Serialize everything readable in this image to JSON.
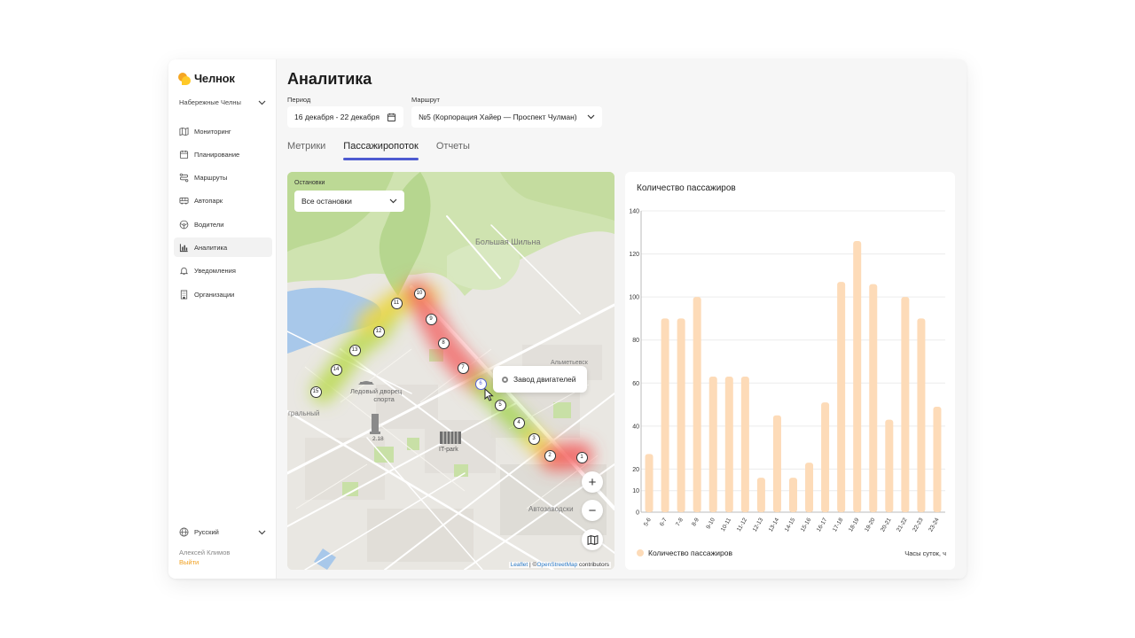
{
  "brand": {
    "name": "Челнок"
  },
  "sidebar": {
    "city": "Набережные Челны",
    "items": [
      {
        "label": "Мониторинг",
        "icon": "map-icon"
      },
      {
        "label": "Планирование",
        "icon": "calendar-icon"
      },
      {
        "label": "Маршруты",
        "icon": "route-icon"
      },
      {
        "label": "Автопарк",
        "icon": "bus-icon"
      },
      {
        "label": "Водители",
        "icon": "steering-wheel-icon"
      },
      {
        "label": "Аналитика",
        "icon": "chart-icon",
        "active": true
      },
      {
        "label": "Уведомления",
        "icon": "bell-icon"
      },
      {
        "label": "Организации",
        "icon": "building-icon"
      }
    ],
    "language": "Русский",
    "user_name": "Алексей Климов",
    "logout": "Выйти"
  },
  "page": {
    "title": "Аналитика",
    "period_label": "Период",
    "period_value": "16 декабря - 22 декабря",
    "route_label": "Маршрут",
    "route_value": "№5 (Корпорация Хайер — Проспект Чулман)",
    "tabs": [
      "Метрики",
      "Пассажиропоток",
      "Отчеты"
    ],
    "active_tab": "Пассажиропоток"
  },
  "map": {
    "stops_label": "Остановки",
    "stops_value": "Все остановки",
    "stops": [
      "1",
      "2",
      "3",
      "4",
      "5",
      "6",
      "7",
      "8",
      "9",
      "10",
      "11",
      "12",
      "13",
      "14",
      "15"
    ],
    "selected_stop": "6",
    "tooltip": "Завод двигателей",
    "labels": {
      "shilna": "Большая Шильна",
      "ice_palace_1": "Ледовый дворец",
      "ice_palace_2": "спорта",
      "tower": "2.18",
      "itpark": "IT-park",
      "almetyevsk": "Альметьевск",
      "avtozavod": "Автозаводски",
      "central": "гральный"
    },
    "attribution_leaflet": "Leaflet",
    "attribution_sep": "| ©",
    "attribution_osm": "OpenStreetMap",
    "attribution_tail": "contributors",
    "zoom_in": "+",
    "zoom_out": "−"
  },
  "chart_data": {
    "type": "bar",
    "title": "Количество пассажиров",
    "xlabel": "Часы суток, ч",
    "ylabel": "",
    "ylim": [
      0,
      140
    ],
    "yticks": [
      0,
      10,
      20,
      40,
      60,
      80,
      100,
      120,
      140
    ],
    "categories": [
      "5-6",
      "6-7",
      "7-8",
      "8-9",
      "9-10",
      "10-11",
      "11-12",
      "12-13",
      "13-14",
      "14-15",
      "15-16",
      "16-17",
      "17-18",
      "18-19",
      "19-20",
      "20-21",
      "21-22",
      "22-23",
      "23-24"
    ],
    "series": [
      {
        "name": "Количество пассажиров",
        "color": "#fddbb8",
        "values": [
          27,
          90,
          90,
          100,
          63,
          63,
          63,
          16,
          45,
          16,
          23,
          51,
          107,
          126,
          106,
          43,
          100,
          90,
          49
        ]
      }
    ],
    "grid": true,
    "legend": "bottom-left"
  },
  "colors": {
    "accent": "#4d5ad0",
    "bar": "#fddbb8",
    "logout": "#f0a020"
  }
}
